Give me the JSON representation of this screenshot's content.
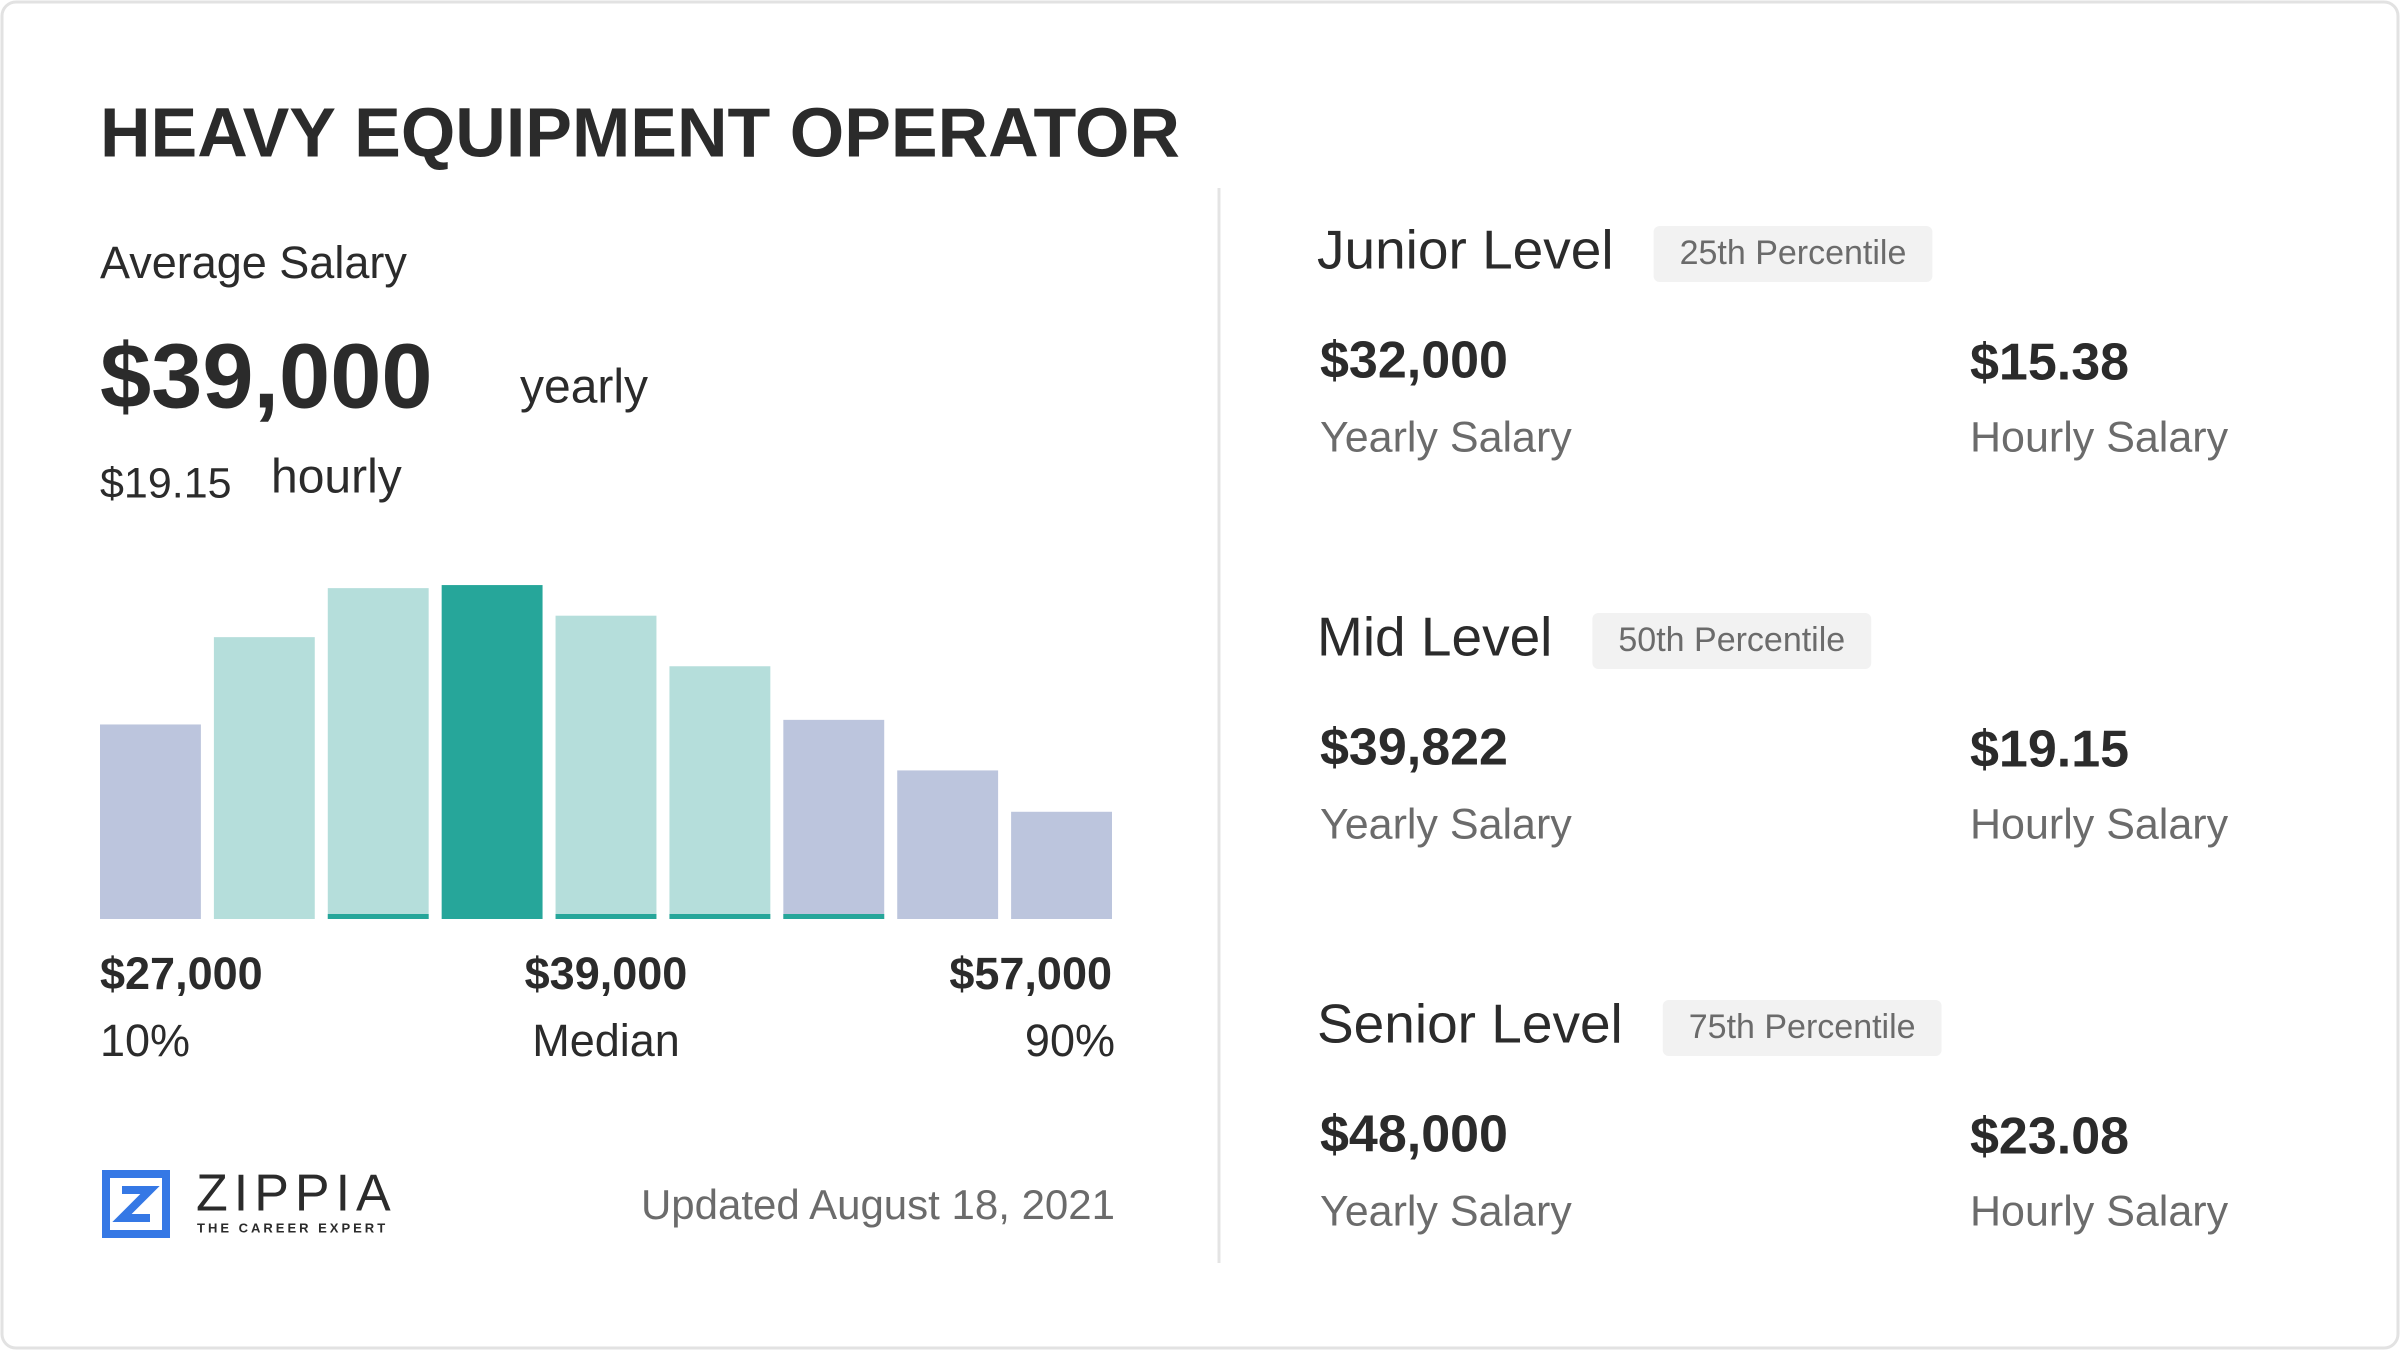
{
  "header": {
    "title": "HEAVY EQUIPMENT OPERATOR"
  },
  "average": {
    "label": "Average Salary",
    "yearly_value": "$39,000",
    "yearly_unit": "yearly",
    "hourly_value": "$19.15",
    "hourly_unit": "hourly"
  },
  "chart_data": {
    "type": "bar",
    "values": [
      127,
      184,
      216,
      218,
      198,
      165,
      130,
      97,
      70
    ],
    "colors": [
      "#bcc5dd",
      "#b5dedb",
      "#b5dedb",
      "#26a69a",
      "#b5dedb",
      "#b5dedb",
      "#bcc5dd",
      "#bcc5dd",
      "#bcc5dd"
    ],
    "underline": [
      false,
      false,
      true,
      false,
      true,
      true,
      true,
      false,
      false
    ],
    "underline_color": "#26a69a",
    "ylim": [
      0,
      220
    ]
  },
  "range_labels": [
    {
      "value": "$27,000",
      "label": "10%"
    },
    {
      "value": "$39,000",
      "label": "Median"
    },
    {
      "value": "$57,000",
      "label": "90%"
    }
  ],
  "footer": {
    "brand": "ZIPPIA",
    "tagline": "THE CAREER EXPERT",
    "updated": "Updated August 18, 2021"
  },
  "levels": [
    {
      "name": "Junior Level",
      "percentile": "25th Percentile",
      "yearly": "$32,000",
      "yearly_label": "Yearly Salary",
      "hourly": "$15.38",
      "hourly_label": "Hourly Salary"
    },
    {
      "name": "Mid Level",
      "percentile": "50th Percentile",
      "yearly": "$39,822",
      "yearly_label": "Yearly Salary",
      "hourly": "$19.15",
      "hourly_label": "Hourly Salary"
    },
    {
      "name": "Senior Level",
      "percentile": "75th Percentile",
      "yearly": "$48,000",
      "yearly_label": "Yearly Salary",
      "hourly": "$23.08",
      "hourly_label": "Hourly Salary"
    }
  ]
}
